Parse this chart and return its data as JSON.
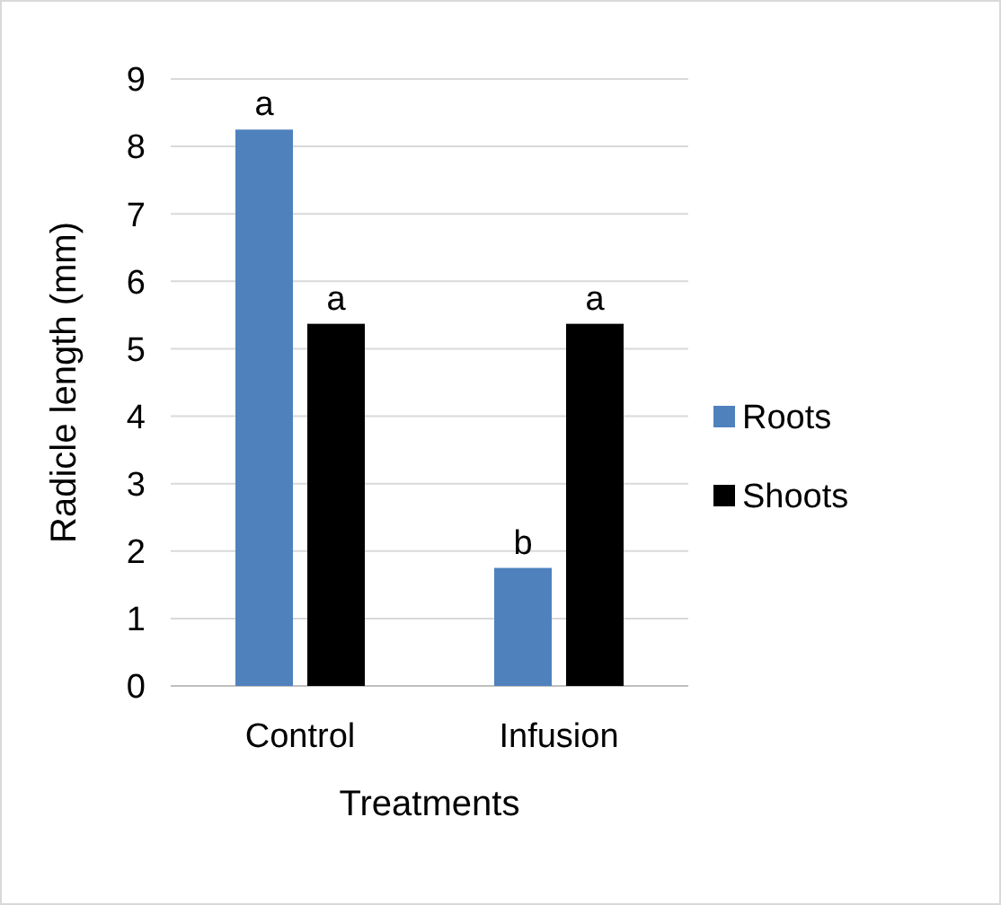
{
  "chart_data": {
    "type": "bar",
    "xlabel": "Treatments",
    "ylabel": "Radicle length (mm)",
    "categories": [
      "Control",
      "Infusion"
    ],
    "series": [
      {
        "name": "Roots",
        "color": "#4f81bd",
        "values": [
          8.25,
          1.75
        ],
        "value_labels": [
          "a",
          "b"
        ]
      },
      {
        "name": "Shoots",
        "color": "#000000",
        "values": [
          5.37,
          5.37
        ],
        "value_labels": [
          "a",
          "a"
        ]
      }
    ],
    "ylim": [
      0,
      9
    ],
    "yticks": [
      0,
      1,
      2,
      3,
      4,
      5,
      6,
      7,
      8,
      9
    ],
    "grid": "y",
    "legend": "right"
  }
}
